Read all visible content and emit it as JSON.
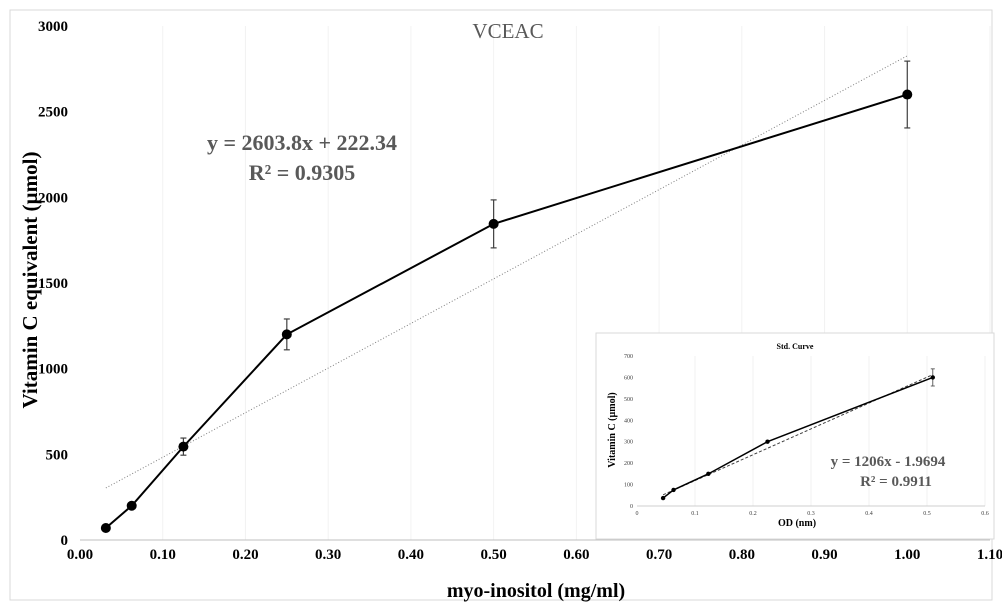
{
  "chart_data": [
    {
      "type": "line",
      "title": "VCEAC",
      "xlabel": "myo-inositol (mg/ml)",
      "ylabel": "Vitamin C equivalent (µmol)",
      "xlim": [
        0,
        1.1
      ],
      "ylim": [
        0,
        3000
      ],
      "x_ticks": [
        "0.00",
        "0.10",
        "0.20",
        "0.30",
        "0.40",
        "0.50",
        "0.60",
        "0.70",
        "0.80",
        "0.90",
        "1.00",
        "1.10"
      ],
      "y_ticks": [
        "0",
        "500",
        "1000",
        "1500",
        "2000",
        "2500",
        "3000"
      ],
      "x_tick_values": [
        0,
        0.1,
        0.2,
        0.3,
        0.4,
        0.5,
        0.6,
        0.7,
        0.8,
        0.9,
        1.0,
        1.1
      ],
      "y_tick_values": [
        0,
        500,
        1000,
        1500,
        2000,
        2500,
        3000
      ],
      "series": [
        {
          "x": [
            0.03125,
            0.0625,
            0.125,
            0.25,
            0.5,
            1.0
          ],
          "y": [
            70,
            200,
            545,
            1200,
            1845,
            2600
          ],
          "error": [
            0,
            0,
            50,
            90,
            140,
            195
          ]
        }
      ],
      "trendline": {
        "slope": 2603.8,
        "intercept": 222.34
      },
      "equation": "y = 2603.8x + 222.34",
      "r2_label": "R² = 0.9305",
      "grid": "vertical"
    },
    {
      "type": "line",
      "title": "Std. Curve",
      "xlabel": "OD (nm)",
      "ylabel": "Vitamin C (µmol)",
      "xlim": [
        0,
        0.6
      ],
      "ylim": [
        0,
        700
      ],
      "x_ticks": [
        "0",
        "0.1",
        "0.2",
        "0.3",
        "0.4",
        "0.5",
        "0.6"
      ],
      "y_ticks": [
        "0",
        "100",
        "200",
        "300",
        "400",
        "500",
        "600",
        "700"
      ],
      "x_tick_values": [
        0,
        0.1,
        0.2,
        0.3,
        0.4,
        0.5,
        0.6
      ],
      "y_tick_values": [
        0,
        100,
        200,
        300,
        400,
        500,
        600,
        700
      ],
      "series": [
        {
          "x": [
            0.045,
            0.063,
            0.123,
            0.225,
            0.51
          ],
          "y": [
            37,
            75,
            150,
            300,
            600
          ],
          "error": [
            0,
            0,
            0,
            0,
            40
          ]
        }
      ],
      "trendline": {
        "slope": 1206,
        "intercept": -1.9694
      },
      "equation": "y = 1206x - 1.9694",
      "r2_label": "R² = 0.9911",
      "grid": "vertical"
    }
  ]
}
